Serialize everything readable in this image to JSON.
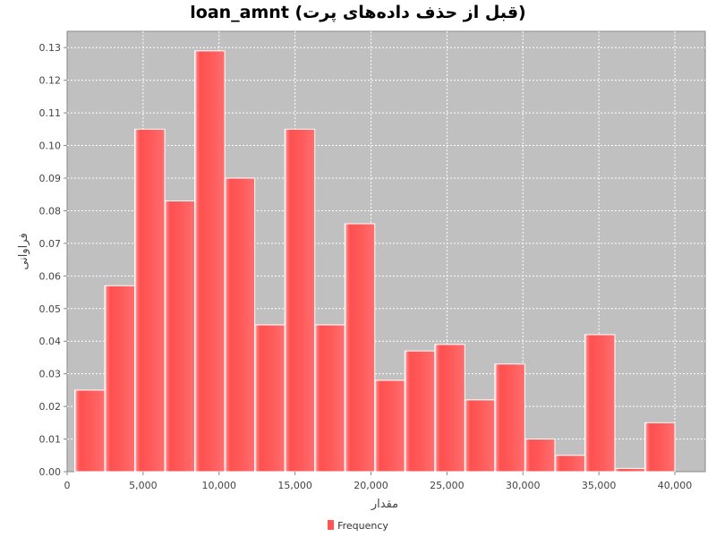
{
  "chart_data": {
    "type": "bar",
    "title": "loan_amnt (قبل از حذف داده‌های پرت)",
    "xlabel": "مقدار",
    "ylabel": "فراوانی",
    "xlim": [
      0,
      42000
    ],
    "ylim": [
      0,
      0.135
    ],
    "x_ticks": [
      0,
      5000,
      10000,
      15000,
      20000,
      25000,
      30000,
      35000,
      40000
    ],
    "x_tick_labels": [
      "0",
      "5,000",
      "10,000",
      "15,000",
      "20,000",
      "25,000",
      "30,000",
      "35,000",
      "40,000"
    ],
    "y_ticks": [
      0,
      0.01,
      0.02,
      0.03,
      0.04,
      0.05,
      0.06,
      0.07,
      0.08,
      0.09,
      0.1,
      0.11,
      0.12,
      0.13
    ],
    "y_tick_labels": [
      "0.00",
      "0.01",
      "0.02",
      "0.03",
      "0.04",
      "0.05",
      "0.06",
      "0.07",
      "0.08",
      "0.09",
      "0.10",
      "0.11",
      "0.12",
      "0.13"
    ],
    "grid": true,
    "legend_position": "bottom",
    "series": [
      {
        "name": "Frequency",
        "color": "#ff5555",
        "bins": [
          {
            "x0": 500,
            "x1": 2475,
            "value": 0.025
          },
          {
            "x0": 2475,
            "x1": 4450,
            "value": 0.057
          },
          {
            "x0": 4450,
            "x1": 6425,
            "value": 0.105
          },
          {
            "x0": 6425,
            "x1": 8400,
            "value": 0.083
          },
          {
            "x0": 8400,
            "x1": 10375,
            "value": 0.129
          },
          {
            "x0": 10375,
            "x1": 12350,
            "value": 0.09
          },
          {
            "x0": 12350,
            "x1": 14325,
            "value": 0.045
          },
          {
            "x0": 14325,
            "x1": 16300,
            "value": 0.105
          },
          {
            "x0": 16300,
            "x1": 18275,
            "value": 0.045
          },
          {
            "x0": 18275,
            "x1": 20250,
            "value": 0.076
          },
          {
            "x0": 20250,
            "x1": 22225,
            "value": 0.028
          },
          {
            "x0": 22225,
            "x1": 24200,
            "value": 0.037
          },
          {
            "x0": 24200,
            "x1": 26175,
            "value": 0.039
          },
          {
            "x0": 26175,
            "x1": 28150,
            "value": 0.022
          },
          {
            "x0": 28150,
            "x1": 30125,
            "value": 0.033
          },
          {
            "x0": 30125,
            "x1": 32100,
            "value": 0.01
          },
          {
            "x0": 32100,
            "x1": 34075,
            "value": 0.005
          },
          {
            "x0": 34075,
            "x1": 36050,
            "value": 0.042
          },
          {
            "x0": 36050,
            "x1": 38025,
            "value": 0.001
          },
          {
            "x0": 38025,
            "x1": 40000,
            "value": 0.015
          }
        ]
      }
    ]
  },
  "legend": {
    "label": "Frequency"
  }
}
